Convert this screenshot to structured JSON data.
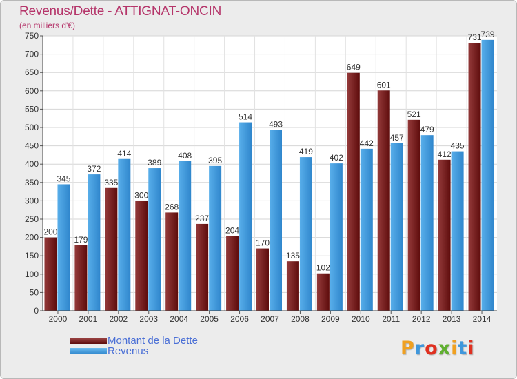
{
  "header": {
    "title": "Revenus/Dette - ATTIGNAT-ONCIN",
    "subtitle": "(en milliers d'€)"
  },
  "legend": {
    "items": [
      {
        "label": "Montant de la Dette",
        "color": "#7a1a1a"
      },
      {
        "label": "Revenus",
        "color": "#3f97dc"
      }
    ]
  },
  "logo": {
    "letters": [
      "P",
      "r",
      "o",
      "x",
      "i",
      "t",
      "i"
    ],
    "colors": [
      "#f0a020",
      "#3f97dc",
      "#e03020",
      "#60b030",
      "#f0a020",
      "#3f97dc",
      "#e03020"
    ]
  },
  "chart_data": {
    "type": "bar",
    "title": "Revenus/Dette - ATTIGNAT-ONCIN",
    "subtitle": "(en milliers d'€)",
    "categories": [
      "2000",
      "2001",
      "2002",
      "2003",
      "2004",
      "2005",
      "2006",
      "2007",
      "2008",
      "2009",
      "2010",
      "2011",
      "2012",
      "2013",
      "2014"
    ],
    "series": [
      {
        "name": "Montant de la Dette",
        "color": "#7a1a1a",
        "values": [
          200,
          179,
          335,
          300,
          268,
          237,
          204,
          170,
          135,
          102,
          649,
          601,
          521,
          412,
          731
        ]
      },
      {
        "name": "Revenus",
        "color": "#3f97dc",
        "values": [
          345,
          372,
          414,
          389,
          408,
          395,
          514,
          493,
          419,
          402,
          442,
          457,
          479,
          435,
          739
        ]
      }
    ],
    "ylim": [
      0,
      750
    ],
    "yticks": [
      0,
      50,
      100,
      150,
      200,
      250,
      300,
      350,
      400,
      450,
      500,
      550,
      600,
      650,
      700,
      750
    ],
    "grid": true,
    "legend_position": "bottom-left"
  }
}
